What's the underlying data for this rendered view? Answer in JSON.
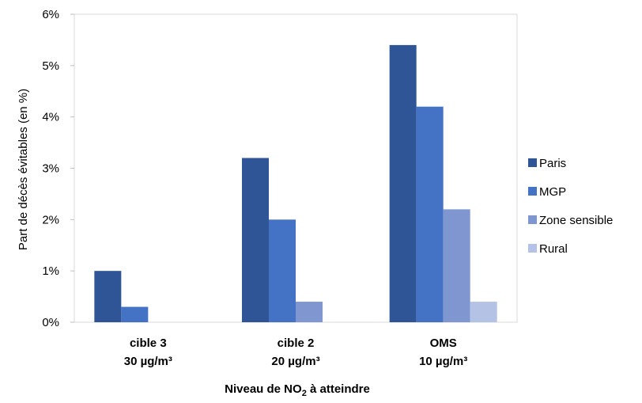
{
  "chart_data": {
    "type": "bar",
    "title": "",
    "categories": [
      {
        "line1": "cible 3",
        "line2": "30 µg/m³"
      },
      {
        "line1": "cible 2",
        "line2": "20 µg/m³"
      },
      {
        "line1": "OMS",
        "line2": "10 µg/m³"
      }
    ],
    "series": [
      {
        "name": "Paris",
        "color": "#2F5597",
        "values": [
          1.0,
          3.2,
          5.4
        ]
      },
      {
        "name": "MGP",
        "color": "#4472C4",
        "values": [
          0.3,
          2.0,
          4.2
        ]
      },
      {
        "name": "Zone sensible",
        "color": "#7F96D1",
        "values": [
          0.0,
          0.4,
          2.2
        ]
      },
      {
        "name": "Rural",
        "color": "#B4C2E6",
        "values": [
          0.0,
          0.0,
          0.4
        ]
      }
    ],
    "ylim": [
      0,
      6
    ],
    "yticks": [
      "0%",
      "1%",
      "2%",
      "3%",
      "4%",
      "5%",
      "6%"
    ],
    "ylabel": "Part de décès évitables (en %)",
    "xlabel": {
      "before": "Niveau de NO",
      "sub": "2",
      "after": " à atteindre"
    },
    "legend_position": "right",
    "grid": false
  }
}
